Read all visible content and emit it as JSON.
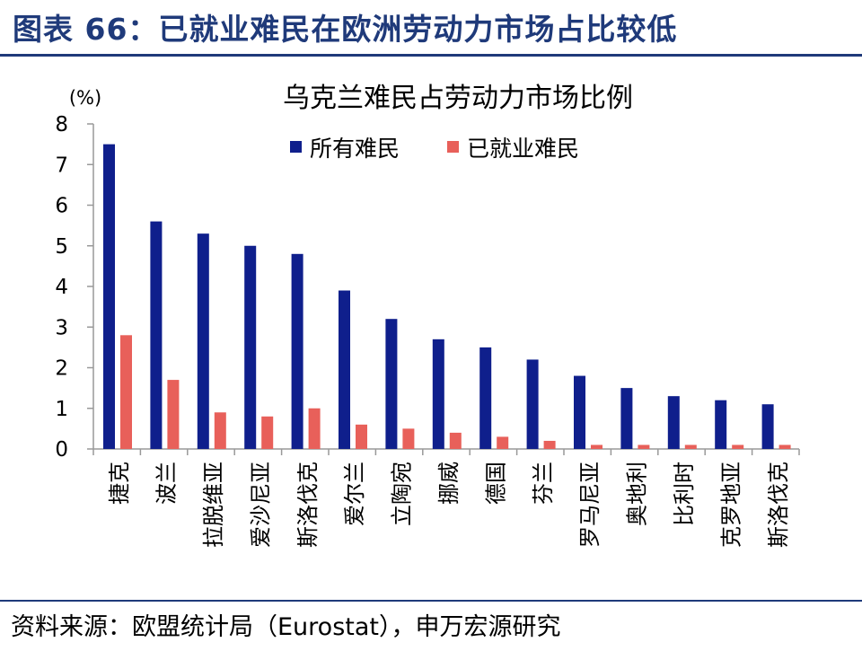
{
  "figure": {
    "title": "图表 66：已就业难民在欧洲劳动力市场占比较低",
    "source": "资料来源：欧盟统计局（Eurostat），申万宏源研究"
  },
  "colors": {
    "brand": "#1f3a7a",
    "series_all": "#0f1f8c",
    "series_employed": "#e8605a"
  },
  "chart_data": {
    "type": "bar",
    "title": "乌克兰难民占劳动力市场比例",
    "ylabel": "(%)",
    "xlabel": "",
    "ylim": [
      0,
      8
    ],
    "yticks": [
      "0",
      "1",
      "2",
      "3",
      "4",
      "5",
      "6",
      "7",
      "8"
    ],
    "legend_position": "top-center",
    "grid": false,
    "categories": [
      "捷克",
      "波兰",
      "拉脱维亚",
      "爱沙尼亚",
      "斯洛伐克",
      "爱尔兰",
      "立陶宛",
      "挪威",
      "德国",
      "芬兰",
      "罗马尼亚",
      "奥地利",
      "比利时",
      "克罗地亚",
      "斯洛伐克"
    ],
    "series": [
      {
        "name": "所有难民",
        "values": [
          7.5,
          5.6,
          5.3,
          5.0,
          4.8,
          3.9,
          3.2,
          2.7,
          2.5,
          2.2,
          1.8,
          1.5,
          1.3,
          1.2,
          1.1
        ]
      },
      {
        "name": "已就业难民",
        "values": [
          2.8,
          1.7,
          0.9,
          0.8,
          1.0,
          0.6,
          0.5,
          0.4,
          0.3,
          0.2,
          0.1,
          0.1,
          0.1,
          0.1,
          0.1
        ]
      }
    ]
  }
}
